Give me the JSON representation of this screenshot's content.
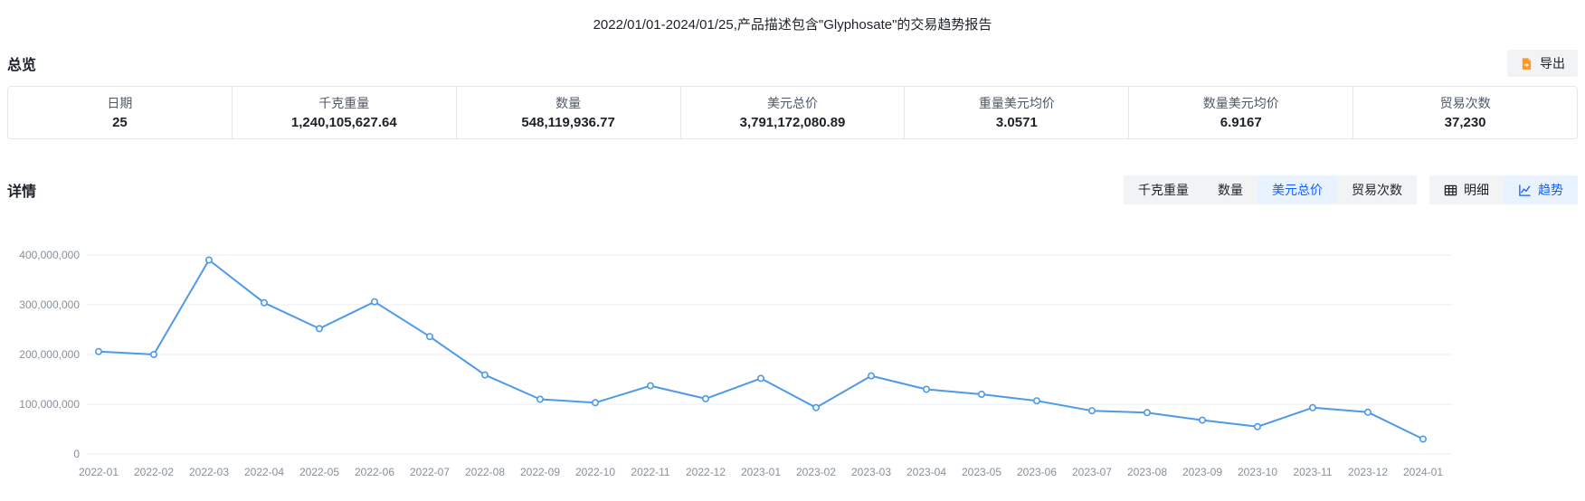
{
  "page": {
    "title": "2022/01/01-2024/01/25,产品描述包含\"Glyphosate\"的交易趋势报告"
  },
  "overview": {
    "section_title": "总览",
    "export_label": "导出",
    "stats": [
      {
        "label": "日期",
        "value": "25"
      },
      {
        "label": "千克重量",
        "value": "1,240,105,627.64"
      },
      {
        "label": "数量",
        "value": "548,119,936.77"
      },
      {
        "label": "美元总价",
        "value": "3,791,172,080.89"
      },
      {
        "label": "重量美元均价",
        "value": "3.0571"
      },
      {
        "label": "数量美元均价",
        "value": "6.9167"
      },
      {
        "label": "贸易次数",
        "value": "37,230"
      }
    ]
  },
  "detail": {
    "section_title": "详情",
    "metric_tabs": [
      {
        "label": "千克重量",
        "selected": false
      },
      {
        "label": "数量",
        "selected": false
      },
      {
        "label": "美元总价",
        "selected": true
      },
      {
        "label": "贸易次数",
        "selected": false
      }
    ],
    "view_tabs": [
      {
        "label": "明细",
        "icon": "table-icon",
        "selected": false
      },
      {
        "label": "趋势",
        "icon": "trend-icon",
        "selected": true
      }
    ]
  },
  "chart_data": {
    "type": "line",
    "title": "",
    "xlabel": "",
    "ylabel": "",
    "x": [
      "2022-01",
      "2022-02",
      "2022-03",
      "2022-04",
      "2022-05",
      "2022-06",
      "2022-07",
      "2022-08",
      "2022-09",
      "2022-10",
      "2022-11",
      "2022-12",
      "2023-01",
      "2023-02",
      "2023-03",
      "2023-04",
      "2023-05",
      "2023-06",
      "2023-07",
      "2023-08",
      "2023-09",
      "2023-10",
      "2023-11",
      "2023-12",
      "2024-01"
    ],
    "series": [
      {
        "name": "美元总价",
        "values": [
          206000000,
          200000000,
          390000000,
          304000000,
          252000000,
          306000000,
          236000000,
          159000000,
          110000000,
          103000000,
          137000000,
          111000000,
          152000000,
          93000000,
          157000000,
          130000000,
          120000000,
          107000000,
          87000000,
          83000000,
          68000000,
          55000000,
          93000000,
          84000000,
          30000000
        ]
      }
    ],
    "ylim": [
      0,
      400000000
    ],
    "yticks": [
      0,
      100000000,
      200000000,
      300000000,
      400000000
    ],
    "ytick_labels": [
      "0",
      "100,000,000",
      "200,000,000",
      "300,000,000",
      "400,000,000"
    ],
    "grid": true,
    "legend": "none",
    "marker": "hollow-circle"
  },
  "colors": {
    "line": "#4d9ae8",
    "gridline": "#e9edf4",
    "axis_text": "#86909c",
    "accent_blue": "#165dff",
    "selected_bg": "#e8f3ff",
    "button_bg": "#f2f3f5",
    "export_icon": "#ff9626",
    "border": "#e5e6eb"
  }
}
